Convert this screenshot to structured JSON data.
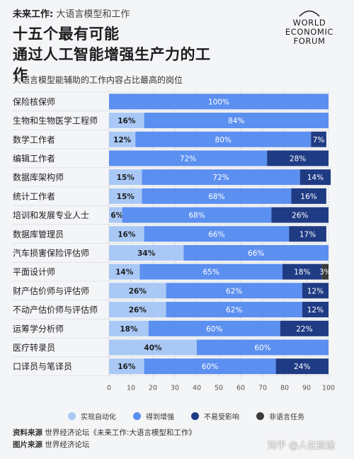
{
  "header": {
    "series_bold": "未来工作:",
    "series_rest": "大语言模型和工作",
    "title_line1": "十五个最有可能",
    "title_line2": "通过人工智能增强生产力的工作"
  },
  "logo": {
    "line1": "WORLD",
    "line2": "ECONOMIC",
    "line3": "FORUM"
  },
  "subtitle": "大语言模型能辅助的工作内容占比最高的岗位",
  "chart_data": {
    "type": "bar",
    "orientation": "horizontal",
    "stacked": true,
    "categories": [
      "保险核保师",
      "生物和生物医学工程师",
      "数学工作者",
      "编辑工作者",
      "数据库架构师",
      "统计工作者",
      "培训和发展专业人士",
      "数据库管理员",
      "汽车损害保险评估师",
      "平面设计师",
      "财产估价师与评估师",
      "不动产估价师与评估师",
      "运筹学分析师",
      "医疗转录员",
      "口译员与笔译员"
    ],
    "series": [
      {
        "name": "实现自动化",
        "color": "#a9c8f5",
        "values": [
          0,
          16,
          12,
          0,
          15,
          15,
          6,
          16,
          34,
          14,
          26,
          26,
          18,
          40,
          16
        ]
      },
      {
        "name": "得到增强",
        "color": "#5b8ff0",
        "values": [
          100,
          84,
          80,
          72,
          72,
          68,
          68,
          66,
          66,
          65,
          62,
          62,
          60,
          60,
          60
        ]
      },
      {
        "name": "不易受影响",
        "color": "#1f3b84",
        "values": [
          0,
          0,
          7,
          28,
          14,
          16,
          26,
          17,
          0,
          18,
          12,
          12,
          22,
          0,
          24
        ]
      },
      {
        "name": "非语言任务",
        "color": "#3a3a3a",
        "values": [
          0,
          0,
          0,
          0,
          0,
          0,
          0,
          0,
          0,
          3,
          0,
          0,
          0,
          0,
          0
        ]
      }
    ],
    "xlim": [
      0,
      100
    ],
    "xticks": [
      0,
      10,
      20,
      30,
      40,
      50,
      60,
      70,
      80,
      90,
      100
    ],
    "legend_position": "bottom"
  },
  "source": {
    "label1": "资料来源",
    "text1": "世界经济论坛《未来工作:大语言模型和工作》",
    "label2": "图片来源",
    "text2": "世界经济论坛"
  },
  "watermark": "知乎 @人在旅途"
}
